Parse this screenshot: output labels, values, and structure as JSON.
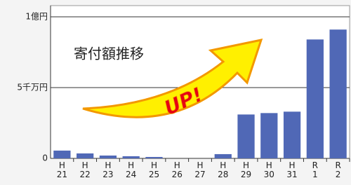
{
  "chart_data": {
    "type": "bar",
    "title": "寄付額推移",
    "annotation": "UP!",
    "categories": [
      "H\n21",
      "H\n22",
      "H\n23",
      "H\n24",
      "H\n25",
      "H\n26",
      "H\n27",
      "H\n28",
      "H\n29",
      "H\n30",
      "H\n31",
      "R\n1",
      "R\n2"
    ],
    "values": [
      5500000,
      3500000,
      2000000,
      1500000,
      1000000,
      0,
      0,
      3000000,
      31000000,
      32000000,
      33000000,
      84000000,
      91000000
    ],
    "color": "#5068b6",
    "ylim": [
      0,
      100000000
    ],
    "yticks": [
      0,
      {
        "value": 50000000,
        "label": "5千万円"
      },
      {
        "value": 100000000,
        "label": "1億円"
      }
    ],
    "grid": true
  }
}
